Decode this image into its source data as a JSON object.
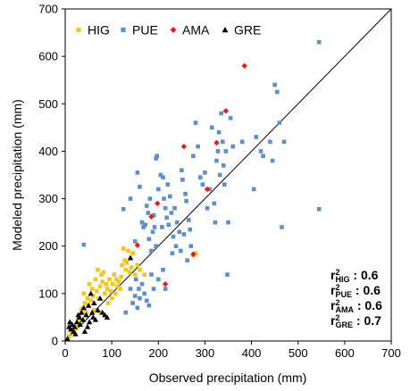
{
  "chart_data": {
    "type": "scatter",
    "xlabel": "Observed precipitation (mm)",
    "ylabel": "Modeled precipitation (mm)",
    "xlim": [
      0,
      700
    ],
    "ylim": [
      0,
      700
    ],
    "xticks": [
      0,
      100,
      200,
      300,
      400,
      500,
      600,
      700
    ],
    "yticks": [
      0,
      100,
      200,
      300,
      400,
      500,
      600,
      700
    ],
    "grid": false,
    "legend_position": "top-left",
    "reference_line": "1:1",
    "series": [
      {
        "name": "HIG",
        "marker": "square",
        "color": "#F5C518",
        "points": [
          [
            8,
            10
          ],
          [
            14,
            18
          ],
          [
            20,
            25
          ],
          [
            24,
            30
          ],
          [
            28,
            40
          ],
          [
            30,
            55
          ],
          [
            32,
            45
          ],
          [
            35,
            65
          ],
          [
            38,
            70
          ],
          [
            40,
            100
          ],
          [
            42,
            80
          ],
          [
            45,
            60
          ],
          [
            48,
            90
          ],
          [
            50,
            75
          ],
          [
            52,
            120
          ],
          [
            55,
            85
          ],
          [
            58,
            110
          ],
          [
            60,
            95
          ],
          [
            62,
            65
          ],
          [
            65,
            130
          ],
          [
            68,
            105
          ],
          [
            70,
            150
          ],
          [
            72,
            90
          ],
          [
            74,
            60
          ],
          [
            75,
            115
          ],
          [
            78,
            140
          ],
          [
            80,
            125
          ],
          [
            82,
            145
          ],
          [
            85,
            100
          ],
          [
            88,
            120
          ],
          [
            90,
            110
          ],
          [
            92,
            80
          ],
          [
            95,
            130
          ],
          [
            98,
            105
          ],
          [
            100,
            90
          ],
          [
            102,
            120
          ],
          [
            105,
            140
          ],
          [
            108,
            100
          ],
          [
            110,
            130
          ],
          [
            112,
            115
          ],
          [
            115,
            125
          ],
          [
            118,
            110
          ],
          [
            120,
            135
          ],
          [
            122,
            160
          ],
          [
            125,
            195
          ],
          [
            128,
            170
          ],
          [
            130,
            150
          ],
          [
            132,
            165
          ],
          [
            135,
            190
          ],
          [
            138,
            145
          ],
          [
            140,
            175
          ],
          [
            142,
            155
          ],
          [
            145,
            185
          ],
          [
            150,
            140
          ],
          [
            155,
            160
          ],
          [
            160,
            150
          ],
          [
            170,
            140
          ],
          [
            275,
            180
          ],
          [
            280,
            185
          ]
        ]
      },
      {
        "name": "PUE",
        "marker": "square",
        "color": "#5B8FD0",
        "points": [
          [
            40,
            203
          ],
          [
            125,
            278
          ],
          [
            140,
            300
          ],
          [
            150,
            210
          ],
          [
            155,
            355
          ],
          [
            160,
            325
          ],
          [
            165,
            250
          ],
          [
            168,
            240
          ],
          [
            172,
            245
          ],
          [
            175,
            285
          ],
          [
            178,
            270
          ],
          [
            180,
            215
          ],
          [
            182,
            300
          ],
          [
            185,
            190
          ],
          [
            188,
            230
          ],
          [
            190,
            265
          ],
          [
            192,
            240
          ],
          [
            195,
            385
          ],
          [
            197,
            390
          ],
          [
            200,
            320
          ],
          [
            205,
            350
          ],
          [
            208,
            240
          ],
          [
            210,
            345
          ],
          [
            212,
            300
          ],
          [
            215,
            280
          ],
          [
            218,
            260
          ],
          [
            220,
            330
          ],
          [
            222,
            245
          ],
          [
            225,
            305
          ],
          [
            228,
            270
          ],
          [
            230,
            185
          ],
          [
            232,
            220
          ],
          [
            235,
            280
          ],
          [
            238,
            200
          ],
          [
            240,
            250
          ],
          [
            245,
            230
          ],
          [
            248,
            190
          ],
          [
            250,
            360
          ],
          [
            252,
            340
          ],
          [
            255,
            225
          ],
          [
            258,
            310
          ],
          [
            260,
            295
          ],
          [
            262,
            170
          ],
          [
            265,
            255
          ],
          [
            268,
            235
          ],
          [
            270,
            200
          ],
          [
            275,
            390
          ],
          [
            280,
            460
          ],
          [
            285,
            410
          ],
          [
            290,
            345
          ],
          [
            295,
            330
          ],
          [
            300,
            355
          ],
          [
            305,
            280
          ],
          [
            310,
            320
          ],
          [
            315,
            450
          ],
          [
            320,
            290
          ],
          [
            322,
            250
          ],
          [
            325,
            380
          ],
          [
            328,
            400
          ],
          [
            330,
            440
          ],
          [
            332,
            350
          ],
          [
            335,
            480
          ],
          [
            338,
            420
          ],
          [
            340,
            370
          ],
          [
            342,
            330
          ],
          [
            345,
            400
          ],
          [
            348,
            140
          ],
          [
            350,
            250
          ],
          [
            355,
            470
          ],
          [
            360,
            410
          ],
          [
            380,
            420
          ],
          [
            405,
            320
          ],
          [
            410,
            430
          ],
          [
            420,
            400
          ],
          [
            425,
            390
          ],
          [
            440,
            420
          ],
          [
            445,
            380
          ],
          [
            450,
            540
          ],
          [
            455,
            525
          ],
          [
            460,
            460
          ],
          [
            465,
            240
          ],
          [
            470,
            420
          ],
          [
            130,
            60
          ],
          [
            140,
            110
          ],
          [
            145,
            80
          ],
          [
            150,
            95
          ],
          [
            152,
            130
          ],
          [
            155,
            70
          ],
          [
            158,
            110
          ],
          [
            160,
            90
          ],
          [
            165,
            120
          ],
          [
            170,
            100
          ],
          [
            175,
            85
          ],
          [
            180,
            75
          ],
          [
            185,
            140
          ],
          [
            190,
            110
          ],
          [
            195,
            200
          ],
          [
            200,
            130
          ],
          [
            210,
            150
          ],
          [
            215,
            110
          ],
          [
            545,
            630
          ],
          [
            545,
            278
          ]
        ]
      },
      {
        "name": "AMA",
        "marker": "diamond",
        "color": "#E02020",
        "points": [
          [
            155,
            202
          ],
          [
            185,
            262
          ],
          [
            198,
            290
          ],
          [
            215,
            120
          ],
          [
            255,
            410
          ],
          [
            275,
            183
          ],
          [
            305,
            320
          ],
          [
            325,
            418
          ],
          [
            345,
            485
          ],
          [
            385,
            580
          ]
        ]
      },
      {
        "name": "GRE",
        "marker": "triangle",
        "color": "#000000",
        "points": [
          [
            5,
            5
          ],
          [
            8,
            30
          ],
          [
            10,
            40
          ],
          [
            12,
            25
          ],
          [
            15,
            35
          ],
          [
            18,
            20
          ],
          [
            20,
            30
          ],
          [
            22,
            15
          ],
          [
            25,
            40
          ],
          [
            28,
            55
          ],
          [
            30,
            50
          ],
          [
            32,
            35
          ],
          [
            35,
            60
          ],
          [
            38,
            45
          ],
          [
            40,
            70
          ],
          [
            42,
            20
          ],
          [
            45,
            55
          ],
          [
            48,
            30
          ],
          [
            50,
            75
          ],
          [
            52,
            40
          ],
          [
            55,
            100
          ],
          [
            58,
            60
          ],
          [
            60,
            50
          ],
          [
            62,
            80
          ],
          [
            65,
            45
          ],
          [
            70,
            65
          ],
          [
            75,
            90
          ],
          [
            80,
            60
          ],
          [
            85,
            55
          ],
          [
            90,
            50
          ],
          [
            140,
            175
          ]
        ]
      }
    ],
    "stats": [
      {
        "sub": "HIG",
        "value": "0.6"
      },
      {
        "sub": "PUE",
        "value": "0.6"
      },
      {
        "sub": "AMA",
        "value": "0.6"
      },
      {
        "sub": "GRE",
        "value": "0.7"
      }
    ]
  }
}
